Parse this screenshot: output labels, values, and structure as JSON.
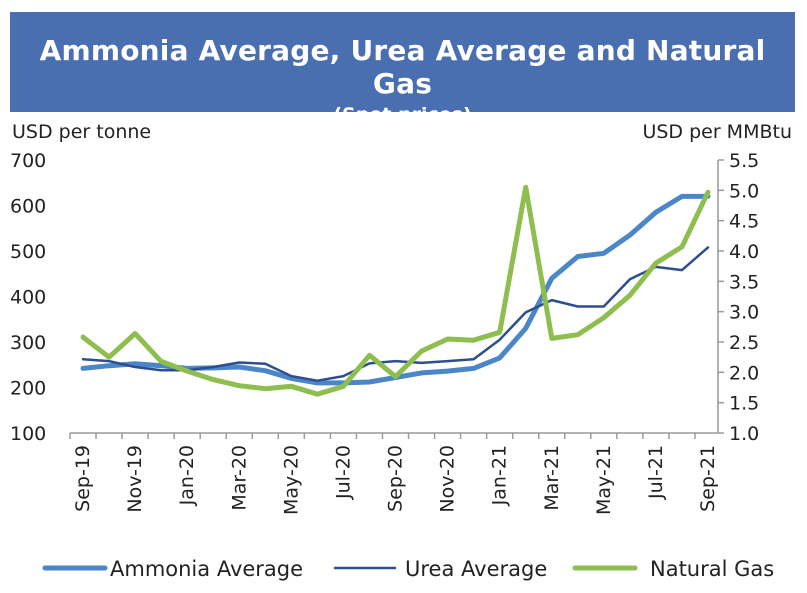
{
  "header": {
    "title": "Ammonia Average, Urea Average and Natural Gas",
    "subtitle": "(Spot prices)"
  },
  "chart_data": {
    "type": "line",
    "left_axis_label": "USD per tonne",
    "right_axis_label": "USD per MMBtu",
    "ylim_left": [
      100,
      700
    ],
    "ylim_right": [
      1.0,
      5.5
    ],
    "yticks_left": [
      "100",
      "200",
      "300",
      "400",
      "500",
      "600",
      "700"
    ],
    "yticks_right": [
      "1.0",
      "1.5",
      "2.0",
      "2.5",
      "3.0",
      "3.5",
      "4.0",
      "4.5",
      "5.0",
      "5.5"
    ],
    "x": [
      "Sep-19",
      "Oct-19",
      "Nov-19",
      "Dec-19",
      "Jan-20",
      "Feb-20",
      "Mar-20",
      "Apr-20",
      "May-20",
      "Jun-20",
      "Jul-20",
      "Aug-20",
      "Sep-20",
      "Oct-20",
      "Nov-20",
      "Dec-20",
      "Jan-21",
      "Feb-21",
      "Mar-21",
      "Apr-21",
      "May-21",
      "Jun-21",
      "Jul-21",
      "Aug-21",
      "Sep-21"
    ],
    "xtick_labels": [
      "Sep-19",
      "Nov-19",
      "Jan-20",
      "Mar-20",
      "May-20",
      "Jul-20",
      "Sep-20",
      "Nov-20",
      "Jan-21",
      "Mar-21",
      "May-21",
      "Jul-21",
      "Sep-21"
    ],
    "grid": false,
    "legend_position": "bottom",
    "series": [
      {
        "name": "Ammonia Average",
        "axis": "left",
        "color": "#4a86c8",
        "values": [
          242,
          248,
          252,
          248,
          242,
          243,
          245,
          237,
          220,
          210,
          210,
          212,
          222,
          232,
          236,
          242,
          265,
          330,
          440,
          488,
          495,
          535,
          585,
          620,
          620
        ]
      },
      {
        "name": "Urea Average",
        "axis": "left",
        "color": "#2e4f8f",
        "values": [
          262,
          258,
          245,
          238,
          238,
          245,
          255,
          252,
          225,
          215,
          225,
          253,
          258,
          254,
          258,
          262,
          305,
          365,
          392,
          378,
          378,
          438,
          465,
          458,
          508
        ]
      },
      {
        "name": "Natural Gas",
        "axis": "right",
        "color": "#8dbe4e",
        "values": [
          2.58,
          2.25,
          2.64,
          2.18,
          2.02,
          1.88,
          1.78,
          1.73,
          1.77,
          1.64,
          1.77,
          2.28,
          1.93,
          2.35,
          2.55,
          2.53,
          2.66,
          5.05,
          2.56,
          2.62,
          2.9,
          3.27,
          3.8,
          4.07,
          4.97
        ]
      }
    ]
  }
}
